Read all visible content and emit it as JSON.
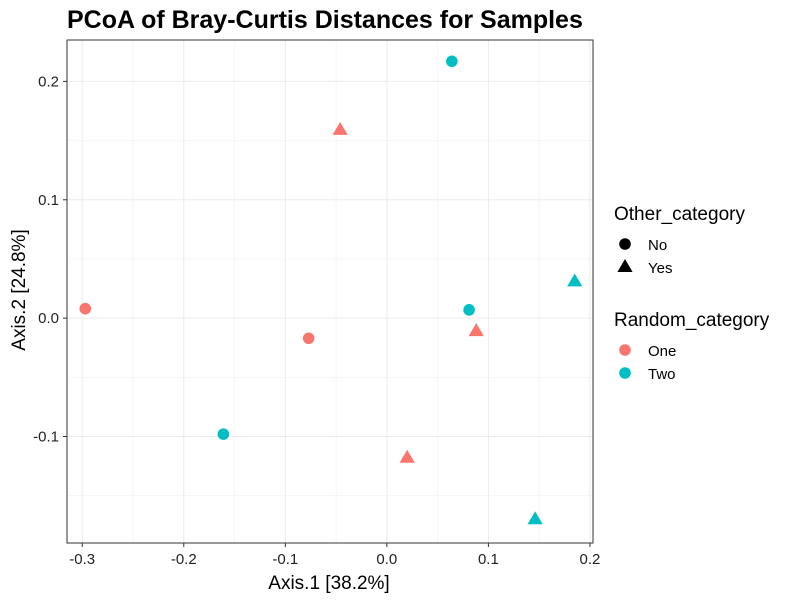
{
  "chart_data": {
    "type": "scatter",
    "title": "PCoA of Bray-Curtis Distances for Samples",
    "xlabel": "Axis.1   [38.2%]",
    "ylabel": "Axis.2   [24.8%]",
    "xlim": [
      -0.315,
      0.203
    ],
    "ylim": [
      -0.19,
      0.235
    ],
    "xticks": [
      -0.3,
      -0.2,
      -0.1,
      0.0,
      0.1,
      0.2
    ],
    "xtick_labels": [
      "-0.3",
      "-0.2",
      "-0.1",
      "0.0",
      "0.1",
      "0.2"
    ],
    "yticks": [
      -0.1,
      0.0,
      0.1,
      0.2
    ],
    "ytick_labels": [
      "-0.1",
      "0.0",
      "0.1",
      "0.2"
    ],
    "grid": true,
    "legend_position": "right",
    "legends": [
      {
        "title": "Other_category",
        "kind": "shape",
        "entries": [
          {
            "label": "No",
            "shape": "circle"
          },
          {
            "label": "Yes",
            "shape": "triangle"
          }
        ]
      },
      {
        "title": "Random_category",
        "kind": "color",
        "entries": [
          {
            "label": "One",
            "color": "#F8766D"
          },
          {
            "label": "Two",
            "color": "#00BFC4"
          }
        ]
      }
    ],
    "points": [
      {
        "x": 0.064,
        "y": 0.217,
        "other": "No",
        "random": "Two"
      },
      {
        "x": -0.046,
        "y": 0.159,
        "other": "Yes",
        "random": "One"
      },
      {
        "x": 0.185,
        "y": 0.031,
        "other": "Yes",
        "random": "Two"
      },
      {
        "x": -0.297,
        "y": 0.008,
        "other": "No",
        "random": "One"
      },
      {
        "x": 0.081,
        "y": 0.007,
        "other": "No",
        "random": "Two"
      },
      {
        "x": 0.088,
        "y": -0.011,
        "other": "Yes",
        "random": "One"
      },
      {
        "x": -0.077,
        "y": -0.017,
        "other": "No",
        "random": "One"
      },
      {
        "x": -0.161,
        "y": -0.098,
        "other": "No",
        "random": "Two"
      },
      {
        "x": 0.02,
        "y": -0.118,
        "other": "Yes",
        "random": "One"
      },
      {
        "x": 0.146,
        "y": -0.17,
        "other": "Yes",
        "random": "Two"
      }
    ]
  }
}
